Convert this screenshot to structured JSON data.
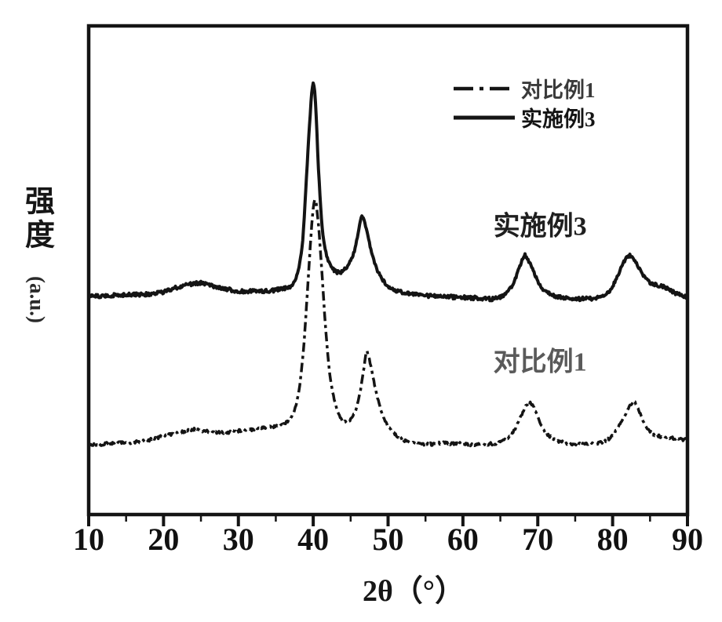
{
  "figure": {
    "background": "#ffffff",
    "frame_color": "#141414",
    "curve_color": "#141414",
    "tick_color": "#141414"
  },
  "axes": {
    "x": {
      "label": "2θ（°）",
      "min": 10,
      "max": 90,
      "major_ticks": [
        10,
        20,
        30,
        40,
        50,
        60,
        70,
        80,
        90
      ],
      "minor_step": 5
    },
    "y": {
      "label_cn": "强度",
      "label_unit": "(a.u.)",
      "ticks_visible": false
    }
  },
  "legend": [
    {
      "label": "对比例1",
      "line_style": "dash-dot"
    },
    {
      "label": "实施例3",
      "line_style": "solid"
    }
  ],
  "annotations": [
    {
      "text": "实施例3",
      "x_deg": 70.3,
      "intensity": 371,
      "color": "#1f1f1f"
    },
    {
      "text": "对比例1",
      "x_deg": 70.3,
      "intensity": 198,
      "color": "#5a5a5a"
    }
  ],
  "chart_data": {
    "type": "line",
    "title": "",
    "xlabel": "2θ（°）",
    "ylabel": "强度（a.u.）",
    "xlim": [
      10,
      90
    ],
    "grid": false,
    "legend_position": "upper center-right",
    "y_units": "arbitrary intensity units (offset stacked curves)",
    "series": [
      {
        "name": "实施例3",
        "style": "solid",
        "noise_amp": 2.4,
        "seed": 1.3,
        "peaks_2theta": [
          40,
          46.5,
          68.2,
          82.4
        ],
        "points": [
          [
            10,
            278
          ],
          [
            12,
            279
          ],
          [
            15,
            280
          ],
          [
            18,
            281
          ],
          [
            20,
            284
          ],
          [
            22,
            290
          ],
          [
            24,
            294
          ],
          [
            25,
            295
          ],
          [
            26,
            293
          ],
          [
            27,
            290
          ],
          [
            28,
            288
          ],
          [
            30,
            285
          ],
          [
            32,
            285
          ],
          [
            34,
            285
          ],
          [
            35.5,
            287
          ],
          [
            36.5,
            289
          ],
          [
            37.3,
            294
          ],
          [
            38,
            311
          ],
          [
            38.6,
            350
          ],
          [
            39.1,
            430
          ],
          [
            39.6,
            510
          ],
          [
            39.9,
            545
          ],
          [
            40.05,
            548
          ],
          [
            40.3,
            525
          ],
          [
            40.7,
            440
          ],
          [
            41.2,
            365
          ],
          [
            41.8,
            330
          ],
          [
            42.5,
            315
          ],
          [
            43.2,
            309
          ],
          [
            44,
            311
          ],
          [
            44.8,
            320
          ],
          [
            45.5,
            336
          ],
          [
            46,
            358
          ],
          [
            46.5,
            381
          ],
          [
            47,
            368
          ],
          [
            47.6,
            342
          ],
          [
            48.3,
            318
          ],
          [
            49,
            303
          ],
          [
            50,
            291
          ],
          [
            51,
            286
          ],
          [
            52,
            283
          ],
          [
            53,
            281
          ],
          [
            54,
            280
          ],
          [
            55,
            279
          ],
          [
            56,
            279
          ],
          [
            57,
            278
          ],
          [
            58,
            278
          ],
          [
            59,
            277
          ],
          [
            60,
            277
          ],
          [
            61,
            276
          ],
          [
            62,
            276
          ],
          [
            63,
            275
          ],
          [
            64,
            275
          ],
          [
            65,
            277
          ],
          [
            66,
            284
          ],
          [
            66.8,
            296
          ],
          [
            67.6,
            316
          ],
          [
            68.2,
            330
          ],
          [
            68.8,
            323
          ],
          [
            69.5,
            308
          ],
          [
            70.3,
            292
          ],
          [
            71,
            285
          ],
          [
            72,
            280
          ],
          [
            73,
            277
          ],
          [
            74,
            276
          ],
          [
            75,
            275
          ],
          [
            76,
            275
          ],
          [
            77,
            275
          ],
          [
            78,
            276
          ],
          [
            79,
            280
          ],
          [
            79.8,
            288
          ],
          [
            80.6,
            303
          ],
          [
            81.4,
            320
          ],
          [
            82.2,
            330
          ],
          [
            82.7,
            328
          ],
          [
            83.4,
            316
          ],
          [
            84.2,
            303
          ],
          [
            85,
            296
          ],
          [
            85.8,
            293
          ],
          [
            86.5,
            291
          ],
          [
            87.2,
            289
          ],
          [
            88,
            284
          ],
          [
            89,
            280
          ],
          [
            90,
            278
          ]
        ]
      },
      {
        "name": "对比例1",
        "style": "dash-dot",
        "noise_amp": 2.0,
        "seed": 7.7,
        "peaks_2theta": [
          40.3,
          47.1,
          69,
          82.9
        ],
        "points": [
          [
            10,
            89
          ],
          [
            12,
            90
          ],
          [
            14,
            91
          ],
          [
            16,
            92
          ],
          [
            18,
            95
          ],
          [
            20,
            100
          ],
          [
            22,
            104
          ],
          [
            23.5,
            108
          ],
          [
            24.5,
            109
          ],
          [
            25.5,
            106
          ],
          [
            27,
            105
          ],
          [
            28.5,
            105
          ],
          [
            30,
            107
          ],
          [
            31.5,
            108
          ],
          [
            33,
            110
          ],
          [
            34.5,
            112
          ],
          [
            35.5,
            113
          ],
          [
            36.5,
            118
          ],
          [
            37.4,
            130
          ],
          [
            38.1,
            158
          ],
          [
            38.7,
            210
          ],
          [
            39.2,
            280
          ],
          [
            39.7,
            355
          ],
          [
            40.1,
            398
          ],
          [
            40.25,
            401
          ],
          [
            40.5,
            388
          ],
          [
            41,
            330
          ],
          [
            41.6,
            245
          ],
          [
            42.2,
            180
          ],
          [
            42.9,
            143
          ],
          [
            43.6,
            124
          ],
          [
            44.3,
            118
          ],
          [
            45,
            121
          ],
          [
            45.7,
            134
          ],
          [
            46.3,
            158
          ],
          [
            46.8,
            188
          ],
          [
            47.15,
            207
          ],
          [
            47.6,
            193
          ],
          [
            48.2,
            165
          ],
          [
            48.9,
            138
          ],
          [
            49.6,
            120
          ],
          [
            50.4,
            108
          ],
          [
            51.2,
            100
          ],
          [
            52,
            95
          ],
          [
            53,
            92
          ],
          [
            54,
            91
          ],
          [
            55,
            90
          ],
          [
            56,
            90
          ],
          [
            57,
            91
          ],
          [
            58,
            91
          ],
          [
            59,
            90
          ],
          [
            60,
            90
          ],
          [
            61,
            89
          ],
          [
            62,
            89
          ],
          [
            63,
            90
          ],
          [
            64,
            90
          ],
          [
            65,
            92
          ],
          [
            66,
            98
          ],
          [
            66.9,
            108
          ],
          [
            67.8,
            126
          ],
          [
            68.6,
            141
          ],
          [
            69,
            143
          ],
          [
            69.6,
            133
          ],
          [
            70.4,
            115
          ],
          [
            71.2,
            103
          ],
          [
            72,
            97
          ],
          [
            73,
            93
          ],
          [
            74,
            91
          ],
          [
            75,
            90
          ],
          [
            76,
            90
          ],
          [
            77,
            90
          ],
          [
            78,
            91
          ],
          [
            79,
            94
          ],
          [
            79.9,
            100
          ],
          [
            80.8,
            112
          ],
          [
            81.7,
            128
          ],
          [
            82.5,
            141
          ],
          [
            82.95,
            143
          ],
          [
            83.5,
            132
          ],
          [
            84.3,
            115
          ],
          [
            85.1,
            105
          ],
          [
            85.9,
            101
          ],
          [
            86.7,
            99
          ],
          [
            87.5,
            98
          ],
          [
            88.3,
            97
          ],
          [
            89.1,
            96
          ],
          [
            90,
            96
          ]
        ]
      }
    ]
  }
}
